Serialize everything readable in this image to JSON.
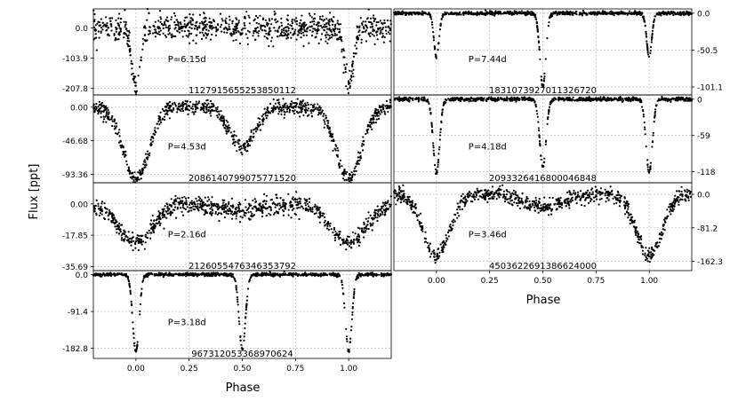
{
  "figure": {
    "ylabel": "Flux [ppt]",
    "xlabel_left": "Phase",
    "xlabel_right": "Phase"
  },
  "chart_data": [
    {
      "type": "scatter",
      "id": "L1",
      "column": "left",
      "row": 0,
      "label": "1127915655253850112",
      "period_text": "P=6.15d",
      "xlim": [
        -0.2,
        1.2
      ],
      "ylim": [
        -230,
        65
      ],
      "yticks": [
        "0.0",
        "-103.9",
        "-207.8"
      ],
      "ytick_values": [
        0,
        -103.9,
        -207.8
      ],
      "xticks": [],
      "x_tick_values": [
        0,
        0.25,
        0.5,
        0.75,
        1.0
      ],
      "profile": {
        "depth": 205,
        "width": 0.02,
        "secondary_depth": 0,
        "secondary_width": 0.03,
        "noise": 22
      }
    },
    {
      "type": "scatter",
      "id": "L2",
      "column": "left",
      "row": 1,
      "label": "2086140799075771520",
      "period_text": "P=4.53d",
      "xlim": [
        -0.2,
        1.2
      ],
      "ylim": [
        -105,
        17
      ],
      "yticks": [
        "0.00",
        "-46.68",
        "-93.36"
      ],
      "ytick_values": [
        0,
        -46.68,
        -93.36
      ],
      "xticks": [],
      "x_tick_values": [
        0,
        0.25,
        0.5,
        0.75,
        1.0
      ],
      "profile": {
        "depth": 100,
        "width": 0.06,
        "secondary_depth": 55,
        "secondary_width": 0.06,
        "noise": 5
      }
    },
    {
      "type": "scatter",
      "id": "L3",
      "column": "left",
      "row": 2,
      "label": "2126055476346353792",
      "period_text": "P=2.16d",
      "xlim": [
        -0.2,
        1.2
      ],
      "ylim": [
        -38,
        12
      ],
      "yticks": [
        "0.00",
        "-17.85",
        "-35.69"
      ],
      "ytick_values": [
        0,
        -17.85,
        -35.69
      ],
      "xticks": [],
      "x_tick_values": [
        0,
        0.25,
        0.5,
        0.75,
        1.0
      ],
      "profile": {
        "depth": 22,
        "width": 0.08,
        "secondary_depth": 4,
        "secondary_width": 0.1,
        "noise": 2.5
      }
    },
    {
      "type": "scatter",
      "id": "L4",
      "column": "left",
      "row": 3,
      "label": "967312053368970624",
      "period_text": "P=3.18d",
      "xlim": [
        -0.2,
        1.2
      ],
      "ylim": [
        -208,
        10
      ],
      "yticks": [
        "0.0",
        "-91.4",
        "-182.8"
      ],
      "ytick_values": [
        0,
        -91.4,
        -182.8
      ],
      "xticks": [
        "0.00",
        "0.25",
        "0.50",
        "0.75",
        "1.00"
      ],
      "x_tick_values": [
        0,
        0.25,
        0.5,
        0.75,
        1.0
      ],
      "profile": {
        "depth": 190,
        "width": 0.015,
        "secondary_depth": 185,
        "secondary_width": 0.015,
        "noise": 2
      }
    },
    {
      "type": "scatter",
      "id": "R1",
      "column": "right",
      "row": 0,
      "label": "1831073927011326720",
      "period_text": "P=7.44d",
      "xlim": [
        -0.2,
        1.2
      ],
      "ylim": [
        -112,
        6
      ],
      "yticks": [
        "0.0",
        "-50.5",
        "-101.1"
      ],
      "ytick_values": [
        0,
        -50.5,
        -101.1
      ],
      "xticks": [],
      "x_tick_values": [
        0,
        0.25,
        0.5,
        0.75,
        1.0
      ],
      "profile": {
        "depth": 60,
        "width": 0.012,
        "secondary_depth": 101,
        "secondary_width": 0.014,
        "noise": 1.2
      }
    },
    {
      "type": "scatter",
      "id": "R2",
      "column": "right",
      "row": 1,
      "label": "2093326416800046848",
      "period_text": "P=4.18d",
      "xlim": [
        -0.2,
        1.2
      ],
      "ylim": [
        -136,
        7
      ],
      "yticks": [
        "0",
        "-59",
        "-118"
      ],
      "ytick_values": [
        0,
        -59,
        -118
      ],
      "xticks": [],
      "x_tick_values": [
        0,
        0.25,
        0.5,
        0.75,
        1.0
      ],
      "profile": {
        "depth": 120,
        "width": 0.015,
        "secondary_depth": 110,
        "secondary_width": 0.015,
        "noise": 1.5
      }
    },
    {
      "type": "scatter",
      "id": "R3",
      "column": "right",
      "row": 2,
      "label": "4503622691386624000",
      "period_text": "P=3.46d",
      "xlim": [
        -0.2,
        1.2
      ],
      "ylim": [
        -185,
        28
      ],
      "yticks": [
        "0.0",
        "-81.2",
        "-162.3"
      ],
      "ytick_values": [
        0,
        -81.2,
        -162.3
      ],
      "xticks": [
        "0.00",
        "0.25",
        "0.50",
        "0.75",
        "1.00"
      ],
      "x_tick_values": [
        0,
        0.25,
        0.5,
        0.75,
        1.0
      ],
      "profile": {
        "depth": 150,
        "width": 0.06,
        "secondary_depth": 30,
        "secondary_width": 0.09,
        "noise": 9
      }
    }
  ]
}
